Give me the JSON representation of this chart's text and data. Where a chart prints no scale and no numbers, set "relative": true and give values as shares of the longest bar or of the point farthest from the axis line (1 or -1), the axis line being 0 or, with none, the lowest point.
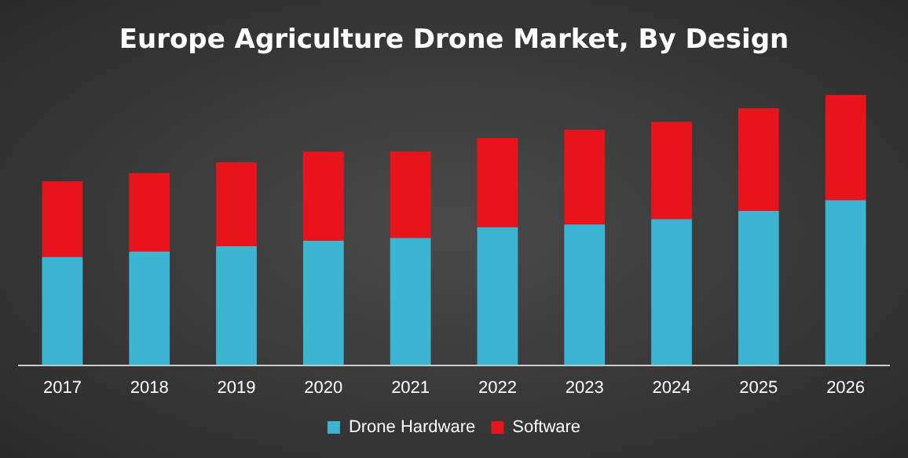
{
  "chart_data": {
    "type": "bar",
    "title": "Europe Agriculture Drone Market, By Design",
    "categories": [
      "2017",
      "2018",
      "2019",
      "2020",
      "2021",
      "2022",
      "2023",
      "2024",
      "2025",
      "2026"
    ],
    "stacked": true,
    "relative": true,
    "legend": "bottom",
    "grid": false,
    "series": [
      {
        "name": "Drone Hardware",
        "color": "#3cb4d2",
        "values": [
          0.4,
          0.42,
          0.44,
          0.46,
          0.47,
          0.51,
          0.52,
          0.54,
          0.57,
          0.61
        ]
      },
      {
        "name": "Software",
        "color": "#e8141c",
        "values": [
          0.28,
          0.29,
          0.31,
          0.33,
          0.32,
          0.33,
          0.35,
          0.36,
          0.38,
          0.39
        ]
      }
    ]
  }
}
